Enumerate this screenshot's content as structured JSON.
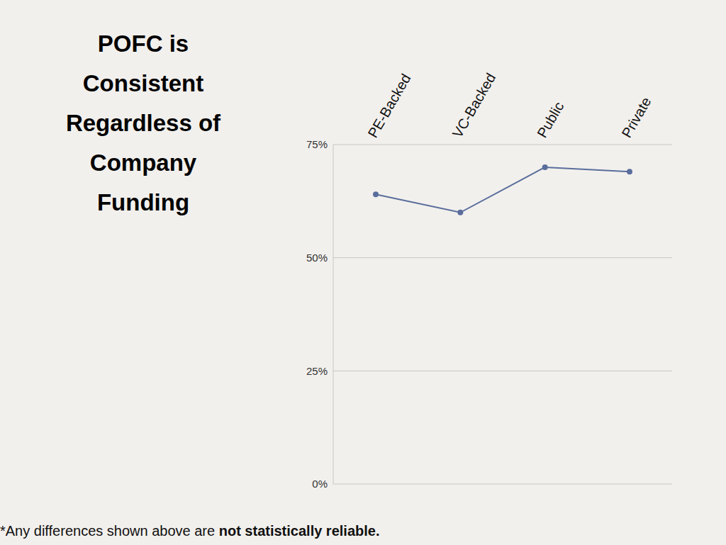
{
  "chart_data": {
    "type": "line",
    "title": "POFC is Consistent Regardless of Company Funding",
    "categories": [
      "PE-Backed",
      "VC-Backed",
      "Public",
      "Private"
    ],
    "values": [
      64,
      60,
      70,
      69
    ],
    "color": "#5a6e9c",
    "marker": "circle",
    "ylim": [
      0,
      75
    ],
    "yticks": [
      {
        "value": 0,
        "label": "0%"
      },
      {
        "value": 25,
        "label": "25%"
      },
      {
        "value": 50,
        "label": "50%"
      },
      {
        "value": 75,
        "label": "75%"
      }
    ],
    "grid": true,
    "annotation": {
      "text": "*Any differences shown above are",
      "bold": "not statistically reliable."
    }
  }
}
